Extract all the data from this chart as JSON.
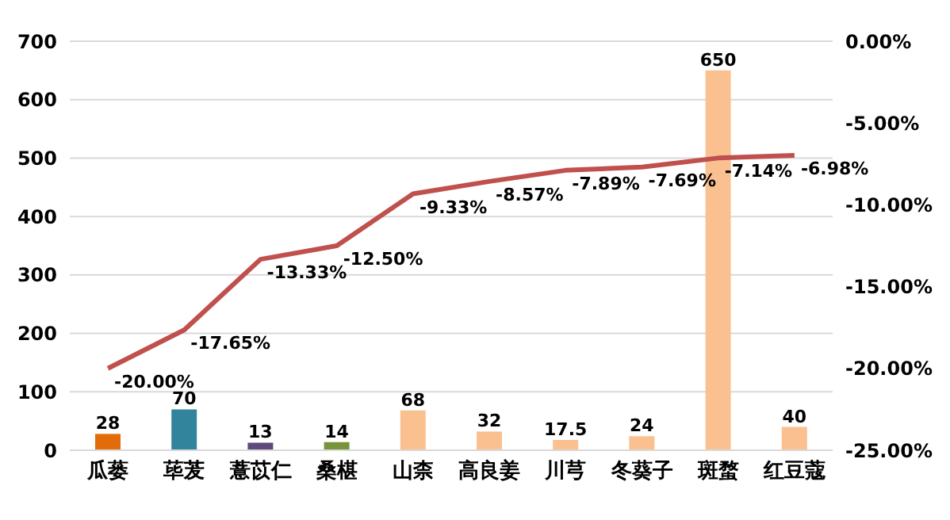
{
  "chart_data": {
    "type": "bar",
    "categories": [
      "瓜蒌",
      "荜茇",
      "薏苡仁",
      "桑椹",
      "山柰",
      "高良姜",
      "川芎",
      "冬葵子",
      "斑蝥",
      "红豆蔻"
    ],
    "series": [
      {
        "colors": [
          "#e36c0a",
          "#31849b",
          "#5f497a",
          "#77933c",
          "#fac090",
          "#fac090",
          "#fac090",
          "#fac090",
          "#fac090",
          "#fac090"
        ],
        "values": [
          28,
          70,
          13,
          14,
          68,
          32,
          17.5,
          24,
          650,
          40
        ],
        "value_labels": [
          "28",
          "70",
          "13",
          "14",
          "68",
          "32",
          "17.5",
          "24",
          "650",
          "40"
        ]
      },
      {
        "type": "line",
        "axis": "y2",
        "color": "#c0504d",
        "values": [
          -20,
          -17.65,
          -13.33,
          -12.5,
          -9.33,
          -8.57,
          -7.89,
          -7.69,
          -7.14,
          -6.98
        ],
        "value_labels": [
          "-20.00%",
          "-17.65%",
          "-13.33%",
          "-12.50%",
          "-9.33%",
          "-8.57%",
          "-7.89%",
          "-7.69%",
          "-7.14%",
          "-6.98%"
        ]
      }
    ],
    "ylim": [
      0,
      700
    ],
    "yticks": [
      0,
      100,
      200,
      300,
      400,
      500,
      600,
      700
    ],
    "y2lim": [
      -25,
      0
    ],
    "y2ticks": [
      {
        "value": -25,
        "label": "-25.00%"
      },
      {
        "value": -20,
        "label": "-20.00%"
      },
      {
        "value": -15,
        "label": "-15.00%"
      },
      {
        "value": -10,
        "label": "-10.00%"
      },
      {
        "value": -5,
        "label": "-5.00%"
      },
      {
        "value": 0,
        "label": "0.00%"
      }
    ],
    "grid": "y",
    "legend": false,
    "marker": "none"
  }
}
